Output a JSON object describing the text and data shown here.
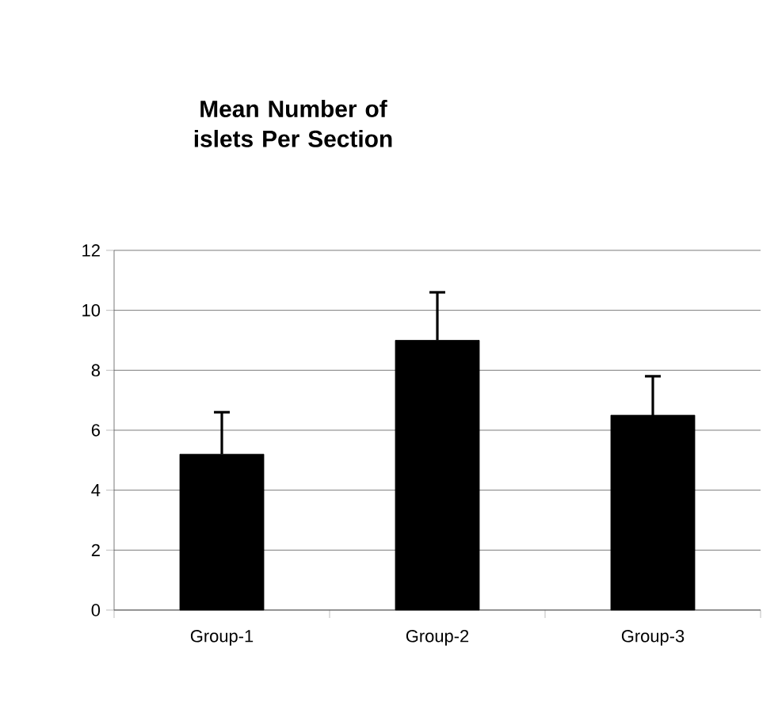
{
  "chart_data": {
    "type": "bar",
    "title": "Mean Number of islets Per Section",
    "categories": [
      "Group-1",
      "Group-2",
      "Group-3"
    ],
    "values": [
      5.2,
      9.0,
      6.5
    ],
    "errors": [
      [
        5.2,
        6.6
      ],
      [
        9.0,
        10.6
      ],
      [
        6.5,
        7.8
      ]
    ],
    "color": "#000000",
    "ylim": [
      0,
      12
    ],
    "yticks": [
      0,
      2,
      4,
      6,
      8,
      10,
      12
    ],
    "grid": "y"
  }
}
